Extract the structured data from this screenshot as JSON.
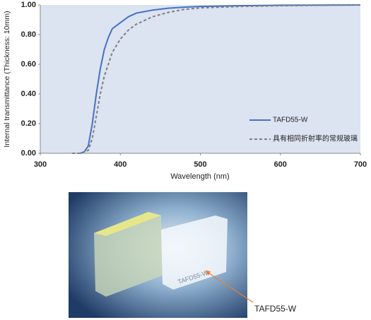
{
  "chart_data": {
    "type": "line",
    "xlabel": "Wavelength (nm)",
    "ylabel": "Internal transmittance (Thickness: 10mm)",
    "xlim": [
      300,
      700
    ],
    "xticks": [
      300,
      400,
      500,
      600,
      700
    ],
    "ylim": [
      0,
      1
    ],
    "yticks": [
      {
        "value": 0,
        "label": "0.00"
      },
      {
        "value": 0.2,
        "label": "0.20"
      },
      {
        "value": 0.4,
        "label": "0.40"
      },
      {
        "value": 0.6,
        "label": "0.60"
      },
      {
        "value": 0.8,
        "label": "0.80"
      },
      {
        "value": 1,
        "label": "1.00"
      }
    ],
    "legend": "right",
    "series": [
      {
        "name": "TAFD55-W",
        "color": "#4472c4",
        "dash": false,
        "x": [
          350,
          355,
          360,
          365,
          370,
          375,
          380,
          385,
          390,
          400,
          410,
          420,
          440,
          460,
          480,
          500,
          550,
          600,
          700
        ],
        "values": [
          0,
          0.01,
          0.05,
          0.2,
          0.4,
          0.57,
          0.7,
          0.78,
          0.84,
          0.88,
          0.92,
          0.945,
          0.965,
          0.978,
          0.985,
          0.99,
          0.995,
          0.998,
          1.0
        ]
      },
      {
        "name": "具有相同折射率的常规玻璃",
        "color": "#7f7f7f",
        "dash": true,
        "x": [
          340,
          350,
          360,
          365,
          370,
          375,
          380,
          390,
          400,
          410,
          420,
          440,
          460,
          480,
          500,
          550,
          600,
          700
        ],
        "values": [
          0,
          0,
          0.02,
          0.1,
          0.25,
          0.4,
          0.52,
          0.68,
          0.77,
          0.83,
          0.87,
          0.92,
          0.95,
          0.97,
          0.98,
          0.99,
          0.995,
          1.0
        ]
      }
    ]
  },
  "photo": {
    "annotation": "TAFD55-W",
    "glass_label": "TAFD55-W"
  }
}
